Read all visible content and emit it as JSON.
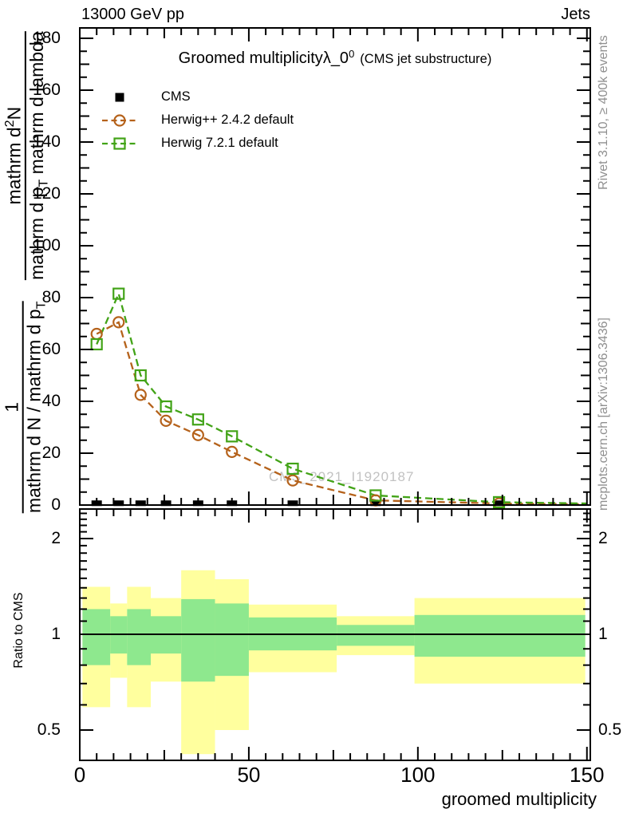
{
  "header": {
    "left": "13000 GeV pp",
    "right": "Jets"
  },
  "title": {
    "text": "Groomed multiplicity",
    "lambda": "λ_0",
    "sup": "0",
    "subtitle": "(CMS jet substructure)"
  },
  "watermark": "CMS_2021_I1920187",
  "side_notes": {
    "top": "Rivet 3.1.10, ≥ 400k events",
    "bottom": "mcplots.cern.ch [arXiv:1306.3436]"
  },
  "axis_labels": {
    "main_y_frac1": {
      "num": "1",
      "den": "mathrm d N / mathrm d p",
      "den_sub": "T"
    },
    "main_y_frac2": {
      "num_pre": "mathrm d",
      "num_sup": "2",
      "num_post": "N",
      "den_pre": "mathrm d p",
      "den_sub": "T",
      "den_post": " mathrm d lambda"
    },
    "ratio_y": "Ratio to CMS",
    "x": "groomed multiplicity"
  },
  "colors": {
    "cms": "#000000",
    "herwigpp": "#b5621b",
    "herwig7": "#42a317",
    "band_outer": "#ffff9e",
    "band_inner": "#8ee88e",
    "watermark": "#c2c2c2",
    "side_note": "#8f8f8f",
    "frame": "#000000"
  },
  "chart_data": [
    {
      "id": "main",
      "type": "line",
      "title": "Groomed multiplicity λ_0^0 (CMS jet substructure)",
      "xlabel": "groomed multiplicity",
      "ylabel": "1/(mathrm dN/mathrm dp_T) mathrm d2N/(mathrm dp_T mathrm dlambda)",
      "xlim": [
        0,
        151
      ],
      "ylim": [
        0,
        184
      ],
      "xticks": [
        0,
        50,
        100,
        150
      ],
      "yticks": [
        0,
        20,
        40,
        60,
        80,
        100,
        120,
        140,
        160,
        180
      ],
      "x_minor_step": 5,
      "x_mid_step": 25,
      "y_minor_step": 5,
      "y_mid_step": 10,
      "grid": false,
      "legend_position": "top-left",
      "series": [
        {
          "name": "CMS",
          "marker": "filled-square",
          "color_key": "cms",
          "line": false,
          "x": [
            5,
            11.5,
            18,
            25.5,
            35,
            45,
            63,
            87.5,
            124
          ],
          "y": [
            0.7,
            0.7,
            0.7,
            0.7,
            0.7,
            0.7,
            0.7,
            0.7,
            0.7
          ]
        },
        {
          "name": "Herwig++ 2.4.2 default",
          "marker": "open-circle",
          "color_key": "herwigpp",
          "line": true,
          "linestyle": "dashed",
          "x": [
            5,
            11.5,
            18,
            25.5,
            35,
            45,
            63,
            87.5,
            124
          ],
          "y": [
            66,
            70.5,
            42.5,
            32.5,
            27,
            20.5,
            9.5,
            1.8,
            0.6
          ],
          "tail": {
            "x": 150,
            "y": 0.3
          }
        },
        {
          "name": "Herwig 7.2.1 default",
          "marker": "open-square",
          "color_key": "herwig7",
          "line": true,
          "linestyle": "dashed",
          "x": [
            5,
            11.5,
            18,
            25.5,
            35,
            45,
            63,
            87.5,
            124
          ],
          "y": [
            62,
            81.5,
            50,
            38,
            33,
            26.5,
            14,
            3.7,
            1.1
          ],
          "tail": {
            "x": 150,
            "y": 0.6
          }
        }
      ]
    },
    {
      "id": "ratio",
      "type": "band",
      "ylabel": "Ratio to CMS",
      "xlabel": "groomed multiplicity",
      "yscale": "log",
      "xlim": [
        0,
        151
      ],
      "ylim": [
        0.4,
        2.49
      ],
      "xticks": [
        0,
        50,
        100,
        150
      ],
      "yticks": [
        0.5,
        1,
        2
      ],
      "ytick_labels": [
        "0.5",
        "1",
        "2"
      ],
      "yticks_minor": [
        0.4,
        0.6,
        0.7,
        0.8,
        0.9,
        1.1,
        1.2,
        1.3,
        1.4,
        1.5,
        1.6,
        1.7,
        1.8,
        1.9,
        2.1,
        2.2,
        2.3,
        2.4
      ],
      "reference_line": 1,
      "bands": [
        {
          "x0": 0.8,
          "x1": 9,
          "outer": [
            0.59,
            1.41
          ],
          "inner": [
            0.8,
            1.2
          ]
        },
        {
          "x0": 9,
          "x1": 14,
          "outer": [
            0.73,
            1.25
          ],
          "inner": [
            0.87,
            1.14
          ]
        },
        {
          "x0": 14,
          "x1": 21,
          "outer": [
            0.59,
            1.41
          ],
          "inner": [
            0.8,
            1.2
          ]
        },
        {
          "x0": 21,
          "x1": 30,
          "outer": [
            0.71,
            1.3
          ],
          "inner": [
            0.87,
            1.14
          ]
        },
        {
          "x0": 30,
          "x1": 40,
          "outer": [
            0.42,
            1.59
          ],
          "inner": [
            0.71,
            1.29
          ]
        },
        {
          "x0": 40,
          "x1": 50,
          "outer": [
            0.5,
            1.49
          ],
          "inner": [
            0.74,
            1.25
          ]
        },
        {
          "x0": 50,
          "x1": 76,
          "outer": [
            0.76,
            1.24
          ],
          "inner": [
            0.89,
            1.13
          ]
        },
        {
          "x0": 76,
          "x1": 99,
          "outer": [
            0.86,
            1.14
          ],
          "inner": [
            0.92,
            1.07
          ]
        },
        {
          "x0": 99,
          "x1": 149.5,
          "outer": [
            0.7,
            1.3
          ],
          "inner": [
            0.85,
            1.15
          ]
        }
      ]
    }
  ]
}
